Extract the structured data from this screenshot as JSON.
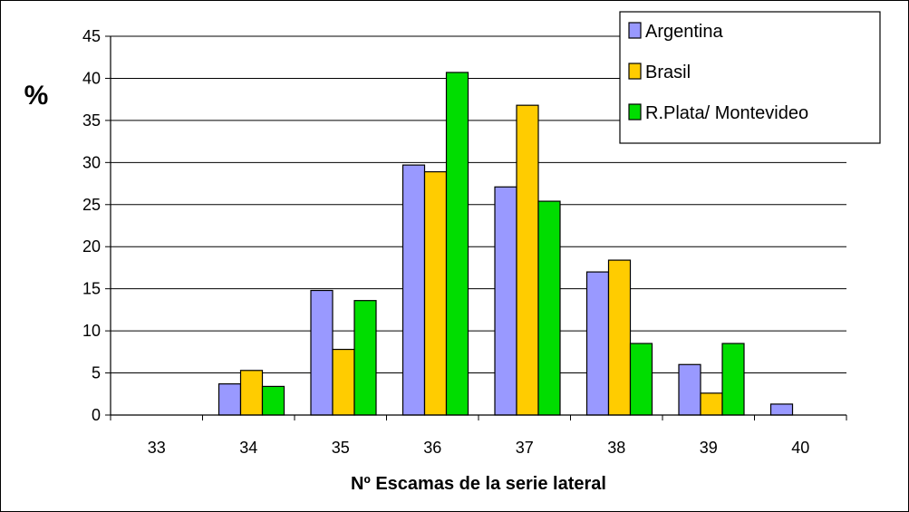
{
  "chart_data": {
    "type": "bar",
    "categories": [
      "33",
      "34",
      "35",
      "36",
      "37",
      "38",
      "39",
      "40"
    ],
    "series": [
      {
        "name": "Argentina",
        "color": "#9999FF",
        "values": [
          0,
          3.7,
          14.8,
          29.7,
          27.1,
          17.0,
          6.0,
          1.3
        ]
      },
      {
        "name": "Brasil",
        "color": "#FFCC00",
        "values": [
          0,
          5.3,
          7.8,
          28.9,
          36.8,
          18.4,
          2.6,
          0
        ]
      },
      {
        "name": "R.Plata/ Montevideo",
        "color": "#00DD00",
        "values": [
          0,
          3.4,
          13.6,
          40.7,
          25.4,
          8.5,
          8.5,
          0
        ]
      }
    ],
    "xlabel": "Nº Escamas de la serie lateral",
    "ylabel": "%",
    "ylim": [
      0,
      45
    ],
    "ytick_step": 5,
    "yticks": [
      "0",
      "5",
      "10",
      "15",
      "20",
      "25",
      "30",
      "35",
      "40",
      "45"
    ],
    "grid": true,
    "legend_position": "top-right"
  }
}
